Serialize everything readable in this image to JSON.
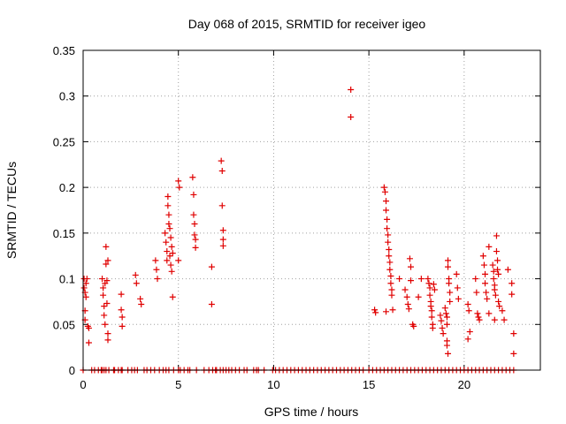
{
  "chart_data": {
    "type": "scatter",
    "title": "Day 068 of 2015, SRMTID for receiver igeo",
    "xlabel": "GPS time / hours",
    "ylabel": "SRMTID / TECUs",
    "xlim": [
      0,
      24
    ],
    "ylim": [
      0,
      0.35
    ],
    "xticks": [
      0,
      5,
      10,
      15,
      20
    ],
    "xtick_labels": [
      "0",
      "5",
      "10",
      "15",
      "20"
    ],
    "yticks": [
      0,
      0.05,
      0.1,
      0.15,
      0.2,
      0.25,
      0.3,
      0.35
    ],
    "ytick_labels": [
      "0",
      "0.05",
      "0.1",
      "0.15",
      "0.2",
      "0.25",
      "0.3",
      "0.35"
    ],
    "grid": true,
    "marker": "+",
    "series": [
      {
        "name": "SRMTID",
        "color": "#e00000",
        "points": [
          [
            0.05,
            0.1
          ],
          [
            0.05,
            0.09
          ],
          [
            0.1,
            0.085
          ],
          [
            0.1,
            0.065
          ],
          [
            0.1,
            0.055
          ],
          [
            0.15,
            0.095
          ],
          [
            0.15,
            0.08
          ],
          [
            0.2,
            0.1
          ],
          [
            0.25,
            0.048
          ],
          [
            0.3,
            0.046
          ],
          [
            0.3,
            0.03
          ],
          [
            1.0,
            0.1
          ],
          [
            1.05,
            0.09
          ],
          [
            1.05,
            0.082
          ],
          [
            1.1,
            0.07
          ],
          [
            1.1,
            0.06
          ],
          [
            1.15,
            0.095
          ],
          [
            1.15,
            0.05
          ],
          [
            1.2,
            0.135
          ],
          [
            1.2,
            0.116
          ],
          [
            1.25,
            0.098
          ],
          [
            1.25,
            0.073
          ],
          [
            1.3,
            0.12
          ],
          [
            1.3,
            0.04
          ],
          [
            1.3,
            0.033
          ],
          [
            2.0,
            0.083
          ],
          [
            2.0,
            0.066
          ],
          [
            2.05,
            0.058
          ],
          [
            2.05,
            0.048
          ],
          [
            2.75,
            0.104
          ],
          [
            2.8,
            0.095
          ],
          [
            3.0,
            0.078
          ],
          [
            3.05,
            0.072
          ],
          [
            3.8,
            0.12
          ],
          [
            3.85,
            0.11
          ],
          [
            3.9,
            0.1
          ],
          [
            4.3,
            0.15
          ],
          [
            4.35,
            0.14
          ],
          [
            4.4,
            0.13
          ],
          [
            4.4,
            0.12
          ],
          [
            4.45,
            0.19
          ],
          [
            4.45,
            0.18
          ],
          [
            4.5,
            0.17
          ],
          [
            4.5,
            0.16
          ],
          [
            4.55,
            0.155
          ],
          [
            4.55,
            0.125
          ],
          [
            4.6,
            0.145
          ],
          [
            4.6,
            0.115
          ],
          [
            4.65,
            0.135
          ],
          [
            4.65,
            0.108
          ],
          [
            4.7,
            0.128
          ],
          [
            4.7,
            0.08
          ],
          [
            5.0,
            0.207
          ],
          [
            5.05,
            0.2
          ],
          [
            5.0,
            0.12
          ],
          [
            5.75,
            0.211
          ],
          [
            5.8,
            0.192
          ],
          [
            5.8,
            0.17
          ],
          [
            5.85,
            0.16
          ],
          [
            5.85,
            0.148
          ],
          [
            5.9,
            0.143
          ],
          [
            5.9,
            0.134
          ],
          [
            6.75,
            0.113
          ],
          [
            6.75,
            0.072
          ],
          [
            7.25,
            0.229
          ],
          [
            7.3,
            0.218
          ],
          [
            7.3,
            0.18
          ],
          [
            7.35,
            0.153
          ],
          [
            7.35,
            0.143
          ],
          [
            7.35,
            0.136
          ],
          [
            14.05,
            0.307
          ],
          [
            14.05,
            0.277
          ],
          [
            15.3,
            0.066
          ],
          [
            15.35,
            0.063
          ],
          [
            15.8,
            0.2
          ],
          [
            15.85,
            0.195
          ],
          [
            15.9,
            0.185
          ],
          [
            15.9,
            0.175
          ],
          [
            15.95,
            0.165
          ],
          [
            15.95,
            0.155
          ],
          [
            16.0,
            0.148
          ],
          [
            16.0,
            0.14
          ],
          [
            16.05,
            0.132
          ],
          [
            16.05,
            0.125
          ],
          [
            16.1,
            0.118
          ],
          [
            16.1,
            0.11
          ],
          [
            16.15,
            0.103
          ],
          [
            16.15,
            0.095
          ],
          [
            16.2,
            0.088
          ],
          [
            16.2,
            0.082
          ],
          [
            16.25,
            0.066
          ],
          [
            15.9,
            0.064
          ],
          [
            16.6,
            0.1
          ],
          [
            16.9,
            0.088
          ],
          [
            17.0,
            0.08
          ],
          [
            17.05,
            0.072
          ],
          [
            17.1,
            0.067
          ],
          [
            17.15,
            0.122
          ],
          [
            17.2,
            0.113
          ],
          [
            17.2,
            0.098
          ],
          [
            17.3,
            0.05
          ],
          [
            17.35,
            0.048
          ],
          [
            17.6,
            0.08
          ],
          [
            17.75,
            0.1
          ],
          [
            18.1,
            0.1
          ],
          [
            18.15,
            0.095
          ],
          [
            18.2,
            0.09
          ],
          [
            18.2,
            0.082
          ],
          [
            18.25,
            0.075
          ],
          [
            18.25,
            0.07
          ],
          [
            18.3,
            0.065
          ],
          [
            18.3,
            0.058
          ],
          [
            18.35,
            0.05
          ],
          [
            18.35,
            0.046
          ],
          [
            18.4,
            0.094
          ],
          [
            18.45,
            0.088
          ],
          [
            18.75,
            0.06
          ],
          [
            18.8,
            0.054
          ],
          [
            18.85,
            0.046
          ],
          [
            18.9,
            0.04
          ],
          [
            19.0,
            0.068
          ],
          [
            19.05,
            0.062
          ],
          [
            19.1,
            0.058
          ],
          [
            19.1,
            0.05
          ],
          [
            19.15,
            0.12
          ],
          [
            19.15,
            0.113
          ],
          [
            19.2,
            0.1
          ],
          [
            19.2,
            0.095
          ],
          [
            19.25,
            0.085
          ],
          [
            19.25,
            0.075
          ],
          [
            19.1,
            0.032
          ],
          [
            19.1,
            0.027
          ],
          [
            19.15,
            0.018
          ],
          [
            19.6,
            0.105
          ],
          [
            19.65,
            0.09
          ],
          [
            19.7,
            0.078
          ],
          [
            20.2,
            0.072
          ],
          [
            20.25,
            0.065
          ],
          [
            20.3,
            0.042
          ],
          [
            20.2,
            0.034
          ],
          [
            20.6,
            0.1
          ],
          [
            20.65,
            0.085
          ],
          [
            20.7,
            0.062
          ],
          [
            20.75,
            0.058
          ],
          [
            20.8,
            0.055
          ],
          [
            21.0,
            0.125
          ],
          [
            21.05,
            0.115
          ],
          [
            21.1,
            0.105
          ],
          [
            21.1,
            0.095
          ],
          [
            21.15,
            0.085
          ],
          [
            21.2,
            0.078
          ],
          [
            21.3,
            0.135
          ],
          [
            21.3,
            0.062
          ],
          [
            21.5,
            0.115
          ],
          [
            21.55,
            0.108
          ],
          [
            21.55,
            0.1
          ],
          [
            21.6,
            0.093
          ],
          [
            21.6,
            0.088
          ],
          [
            21.65,
            0.082
          ],
          [
            21.7,
            0.147
          ],
          [
            21.7,
            0.13
          ],
          [
            21.75,
            0.12
          ],
          [
            21.75,
            0.11
          ],
          [
            21.8,
            0.105
          ],
          [
            21.8,
            0.075
          ],
          [
            21.85,
            0.07
          ],
          [
            21.6,
            0.055
          ],
          [
            22.0,
            0.065
          ],
          [
            22.1,
            0.055
          ],
          [
            22.3,
            0.11
          ],
          [
            22.5,
            0.095
          ],
          [
            22.5,
            0.083
          ],
          [
            22.6,
            0.04
          ],
          [
            22.6,
            0.018
          ]
        ]
      }
    ],
    "zero_samples_x": [
      0.0,
      0.45,
      0.6,
      0.8,
      0.95,
      1.0,
      1.1,
      1.2,
      1.35,
      1.6,
      1.65,
      1.85,
      2.0,
      2.05,
      2.35,
      2.55,
      2.7,
      2.85,
      3.2,
      3.35,
      3.55,
      3.75,
      4.0,
      4.2,
      4.35,
      4.5,
      4.75,
      5.0,
      5.1,
      5.3,
      5.5,
      5.6,
      5.95,
      6.35,
      6.6,
      6.8,
      6.95,
      7.0,
      7.2,
      7.35,
      7.5,
      7.65,
      7.8,
      8.0,
      8.2,
      8.45,
      8.6,
      8.95,
      9.1,
      9.2,
      9.5,
      9.95,
      10.1,
      10.3,
      10.5,
      10.7,
      10.9,
      11.1,
      11.3,
      11.5,
      11.7,
      11.9,
      12.1,
      12.3,
      12.5,
      12.7,
      12.9,
      13.1,
      13.3,
      13.5,
      13.7,
      13.9,
      14.1,
      14.3,
      14.5,
      14.7,
      15.0,
      15.2,
      15.4,
      15.6,
      15.8,
      16.0,
      16.2,
      16.4,
      16.6,
      16.8,
      17.0,
      17.2,
      17.4,
      17.6,
      17.8,
      18.0,
      18.2,
      18.4,
      18.6,
      18.8,
      19.0,
      19.2,
      19.4,
      19.6,
      19.8,
      20.0,
      20.2,
      20.4,
      20.6,
      20.8,
      21.0,
      21.2,
      21.4,
      21.6,
      21.8,
      22.0,
      22.2,
      22.4,
      22.6
    ]
  }
}
